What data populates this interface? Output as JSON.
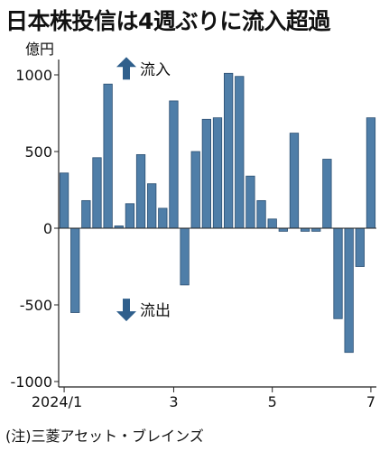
{
  "title": "日本株投信は4週ぶりに流入超過",
  "note": "(注)三菱アセット・ブレインズ",
  "colors": {
    "bar": "#4f7ea8",
    "bar_stroke": "#2b4f72",
    "axis": "#222222",
    "arrow": "#2f5f8c"
  },
  "chart_data": {
    "type": "bar",
    "unit": "億円",
    "ylim": [
      -1000,
      1000
    ],
    "yticks": [
      {
        "value": 1000,
        "label": "1000"
      },
      {
        "value": 500,
        "label": "500"
      },
      {
        "value": 0,
        "label": "0"
      },
      {
        "value": -500,
        "label": "-500"
      },
      {
        "value": -1000,
        "label": "-1000"
      }
    ],
    "xticks": [
      {
        "index": 0,
        "label": "2024/1"
      },
      {
        "index": 10,
        "label": "3"
      },
      {
        "index": 19,
        "label": "5"
      },
      {
        "index": 28,
        "label": "7"
      }
    ],
    "values": [
      360,
      -550,
      180,
      460,
      940,
      15,
      160,
      480,
      290,
      130,
      830,
      -370,
      500,
      710,
      720,
      1010,
      990,
      340,
      180,
      60,
      -20,
      620,
      -20,
      -20,
      450,
      -590,
      -810,
      -250,
      720
    ],
    "annotations": [
      {
        "label": "流入",
        "direction": "up",
        "value": 1040
      },
      {
        "label": "流出",
        "direction": "down",
        "value": -530
      }
    ],
    "grid": false,
    "legend": "none"
  }
}
